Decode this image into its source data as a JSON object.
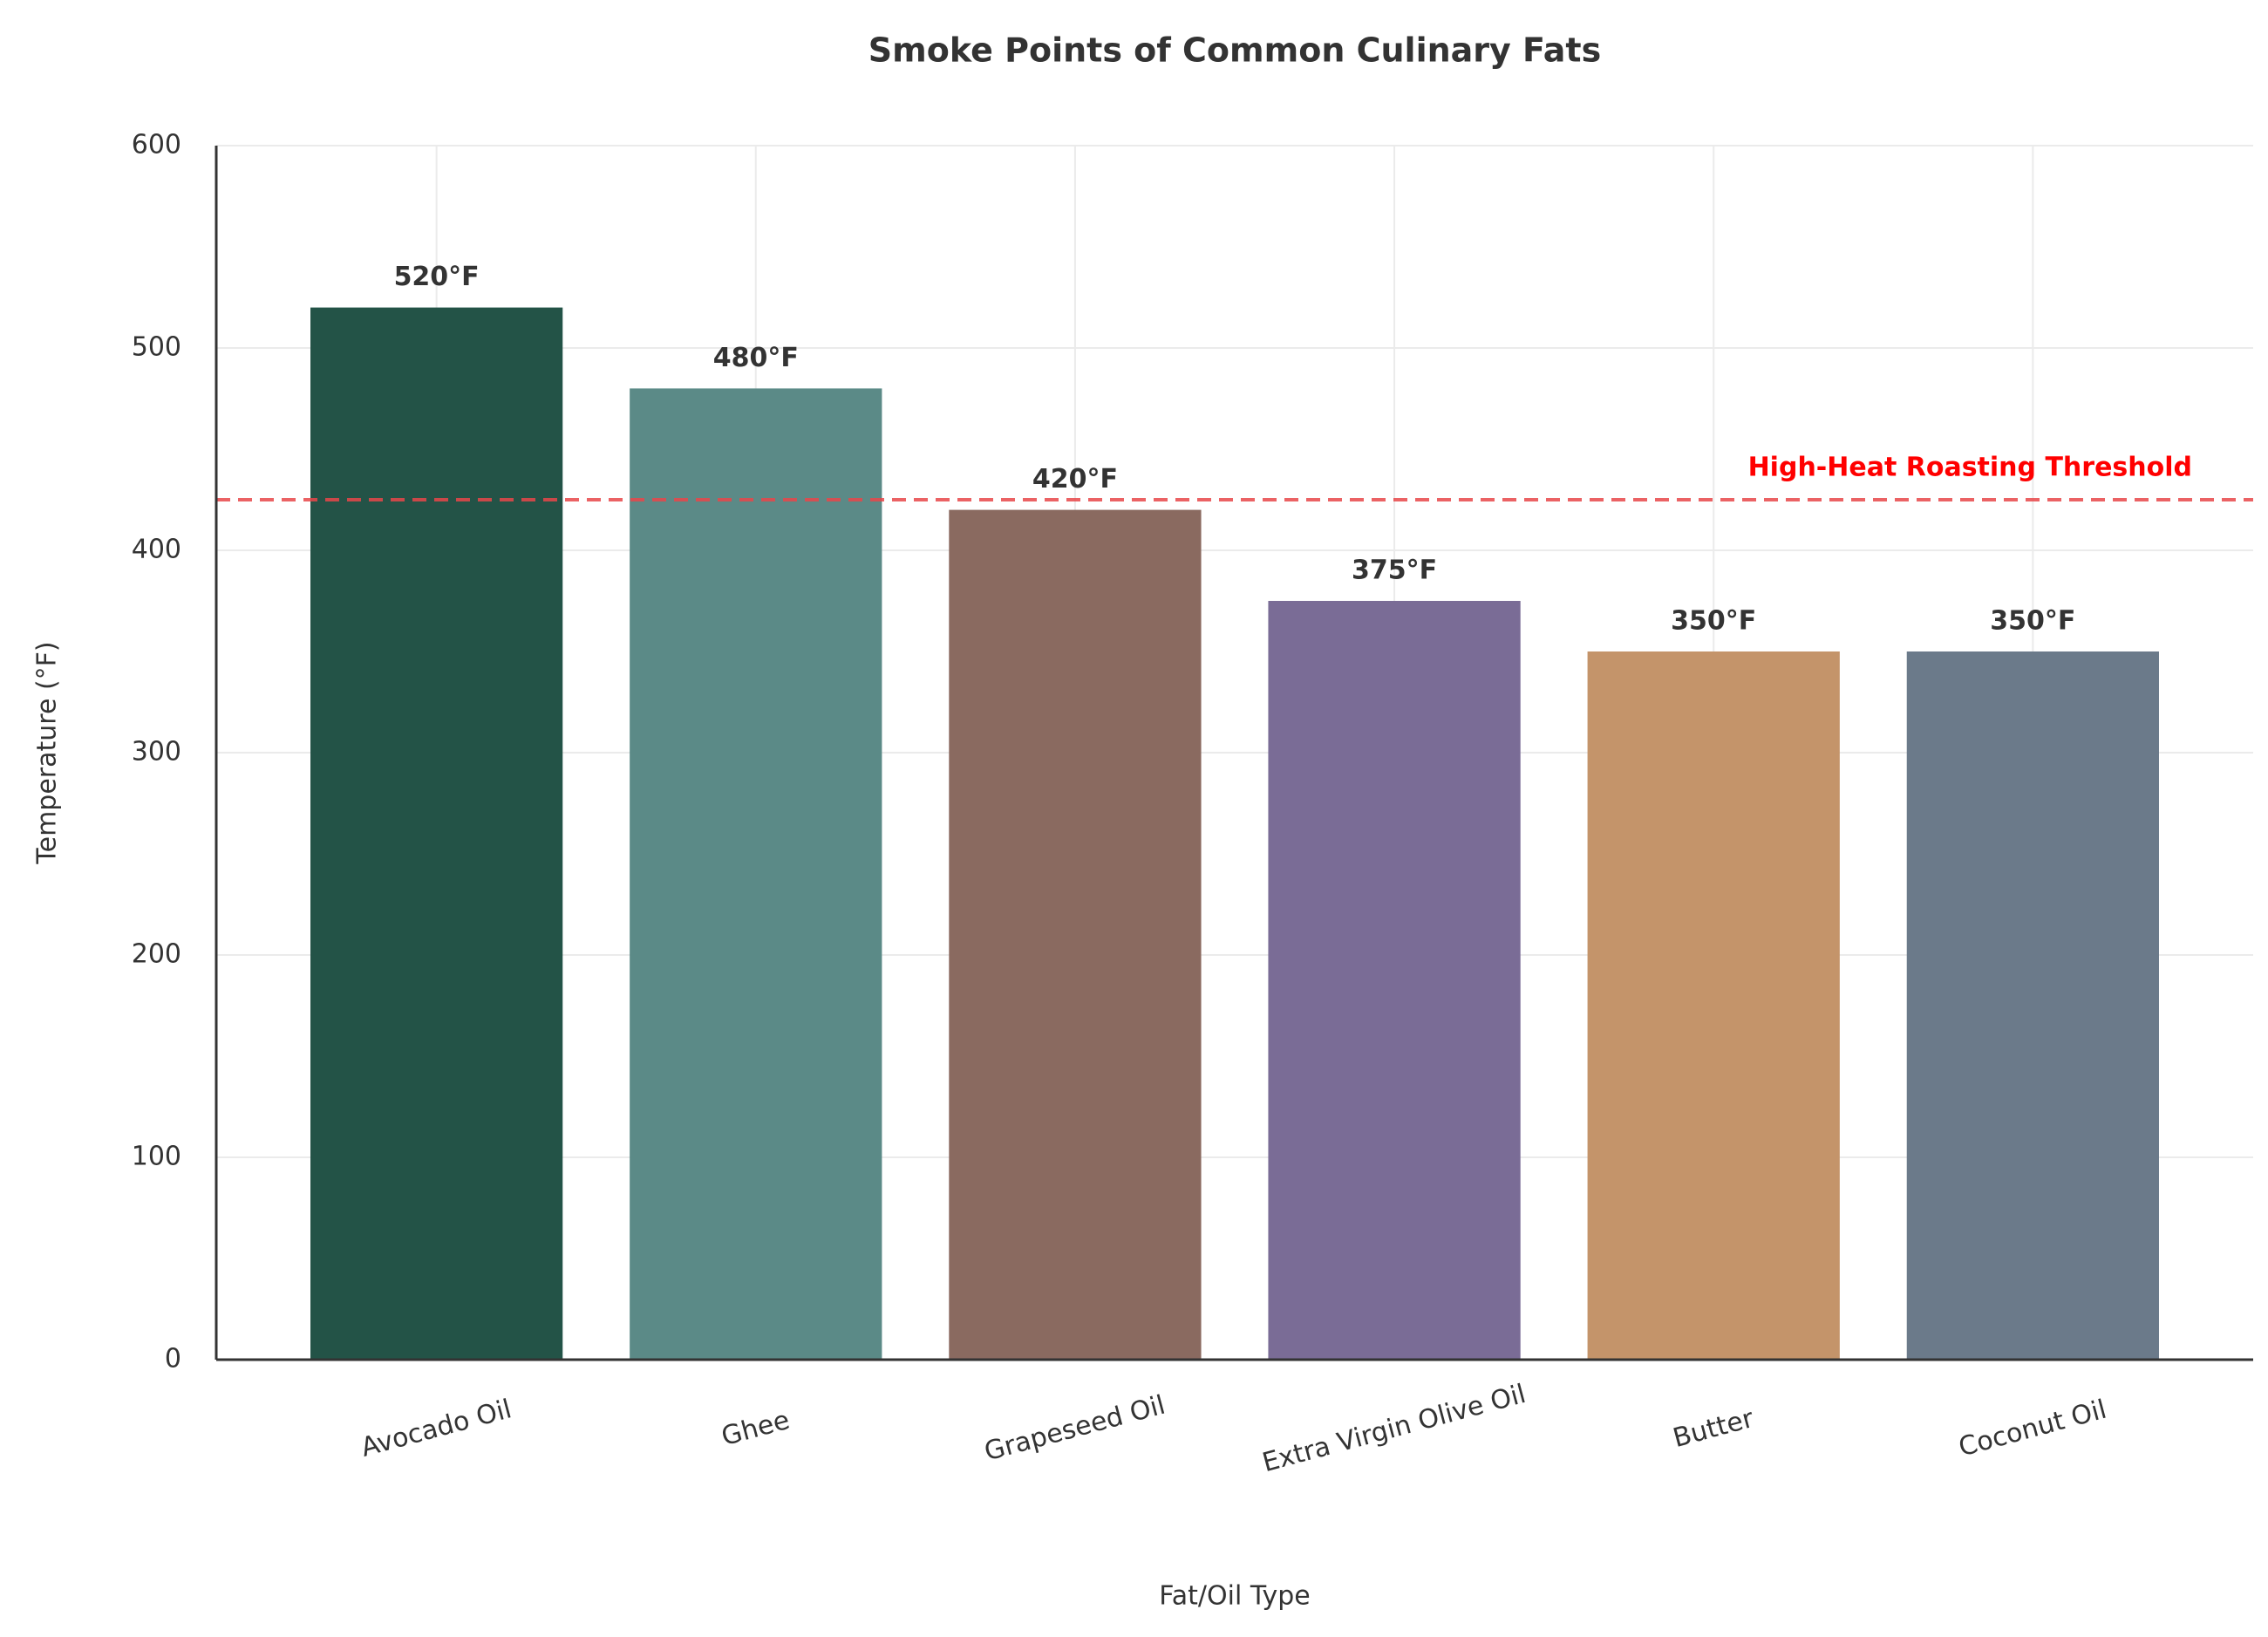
{
  "chart_data": {
    "type": "bar",
    "title": "Smoke Points of Common Culinary Fats",
    "x_label": "Fat/Oil Type",
    "y_label": "Temperature (°F)",
    "categories": [
      "Avocado Oil",
      "Ghee",
      "Grapeseed Oil",
      "Extra Virgin Olive Oil",
      "Butter",
      "Coconut Oil"
    ],
    "values": [
      520,
      480,
      420,
      375,
      350,
      350
    ],
    "value_labels": [
      "520°F",
      "480°F",
      "420°F",
      "375°F",
      "350°F",
      "350°F"
    ],
    "colors": [
      "#235347",
      "#5b8a87",
      "#8a6a60",
      "#7a6c96",
      "#c4946a",
      "#6b7a8a"
    ],
    "ylim": [
      0,
      600
    ],
    "yticks": [
      0,
      100,
      200,
      300,
      400,
      500,
      600
    ],
    "grid": true,
    "reference_line": {
      "value": 425,
      "label": "High-Heat Roasting Threshold",
      "color": "#e8474a",
      "label_color": "#ff0000"
    }
  }
}
